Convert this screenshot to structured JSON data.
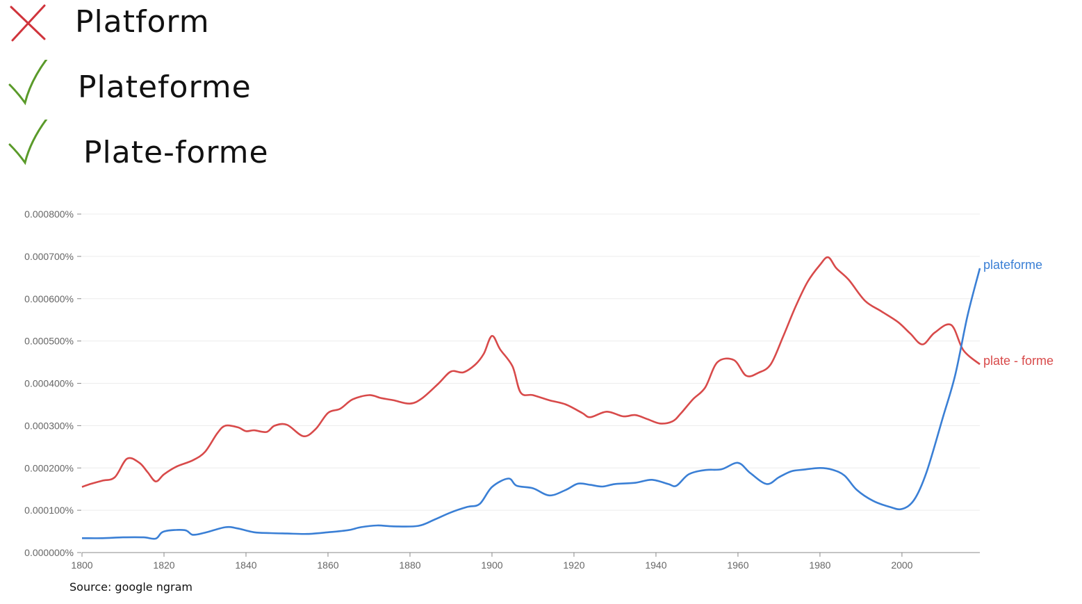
{
  "words": [
    {
      "text": "Platform",
      "status": "wrong",
      "icon": "cross-icon",
      "color": "#d0343c"
    },
    {
      "text": "Plateforme",
      "status": "correct",
      "icon": "check-icon",
      "color": "#5a9a2a"
    },
    {
      "text": "Plate-forme",
      "status": "correct",
      "icon": "check-icon",
      "color": "#5a9a2a"
    }
  ],
  "source": "Source: google ngram",
  "chart_data": {
    "type": "line",
    "title": "",
    "xlabel": "",
    "ylabel": "",
    "xlim": [
      1800,
      2019
    ],
    "ylim": [
      0,
      0.0008
    ],
    "grid": true,
    "x_ticks": [
      1800,
      1820,
      1840,
      1860,
      1880,
      1900,
      1920,
      1940,
      1960,
      1980,
      2000
    ],
    "y_ticks": [
      "0.000000%",
      "0.000100%",
      "0.000200%",
      "0.000300%",
      "0.000400%",
      "0.000500%",
      "0.000600%",
      "0.000700%",
      "0.000800%"
    ],
    "legend": "inline-right",
    "series": [
      {
        "name": "plateforme",
        "color": "#3a7fd5",
        "points": [
          [
            1800,
            3.4e-05
          ],
          [
            1805,
            3.4e-05
          ],
          [
            1810,
            3.6e-05
          ],
          [
            1815,
            3.6e-05
          ],
          [
            1818,
            3.3e-05
          ],
          [
            1820,
            5e-05
          ],
          [
            1825,
            5.3e-05
          ],
          [
            1827,
            4.2e-05
          ],
          [
            1830,
            4.7e-05
          ],
          [
            1835,
            6e-05
          ],
          [
            1838,
            5.7e-05
          ],
          [
            1842,
            4.8e-05
          ],
          [
            1846,
            4.6e-05
          ],
          [
            1850,
            4.5e-05
          ],
          [
            1855,
            4.4e-05
          ],
          [
            1860,
            4.8e-05
          ],
          [
            1865,
            5.3e-05
          ],
          [
            1868,
            6e-05
          ],
          [
            1872,
            6.4e-05
          ],
          [
            1876,
            6.2e-05
          ],
          [
            1882,
            6.3e-05
          ],
          [
            1886,
            7.8e-05
          ],
          [
            1890,
            9.5e-05
          ],
          [
            1894,
            0.000108
          ],
          [
            1897,
            0.000115
          ],
          [
            1900,
            0.000155
          ],
          [
            1904,
            0.000175
          ],
          [
            1906,
            0.000158
          ],
          [
            1910,
            0.000152
          ],
          [
            1914,
            0.000135
          ],
          [
            1918,
            0.000148
          ],
          [
            1921,
            0.000163
          ],
          [
            1924,
            0.00016
          ],
          [
            1927,
            0.000156
          ],
          [
            1930,
            0.000162
          ],
          [
            1935,
            0.000165
          ],
          [
            1939,
            0.000172
          ],
          [
            1943,
            0.000162
          ],
          [
            1945,
            0.000158
          ],
          [
            1948,
            0.000185
          ],
          [
            1952,
            0.000195
          ],
          [
            1956,
            0.000197
          ],
          [
            1960,
            0.000212
          ],
          [
            1963,
            0.000188
          ],
          [
            1967,
            0.000162
          ],
          [
            1970,
            0.000178
          ],
          [
            1973,
            0.000192
          ],
          [
            1976,
            0.000196
          ],
          [
            1980,
            0.0002
          ],
          [
            1983,
            0.000196
          ],
          [
            1986,
            0.000182
          ],
          [
            1989,
            0.000148
          ],
          [
            1993,
            0.000122
          ],
          [
            1997,
            0.000108
          ],
          [
            2000,
            0.000103
          ],
          [
            2003,
            0.000125
          ],
          [
            2006,
            0.00019
          ],
          [
            2010,
            0.00032
          ],
          [
            2013,
            0.00042
          ],
          [
            2016,
            0.00056
          ],
          [
            2019,
            0.000672
          ]
        ]
      },
      {
        "name": "plate - forme",
        "color": "#d84a4a",
        "points": [
          [
            1800,
            0.000155
          ],
          [
            1802,
            0.000162
          ],
          [
            1805,
            0.00017
          ],
          [
            1808,
            0.000178
          ],
          [
            1811,
            0.000222
          ],
          [
            1814,
            0.000212
          ],
          [
            1816,
            0.00019
          ],
          [
            1818,
            0.000168
          ],
          [
            1820,
            0.000185
          ],
          [
            1823,
            0.000203
          ],
          [
            1827,
            0.000218
          ],
          [
            1830,
            0.000238
          ],
          [
            1833,
            0.000282
          ],
          [
            1835,
            0.0003
          ],
          [
            1838,
            0.000296
          ],
          [
            1840,
            0.000287
          ],
          [
            1842,
            0.000289
          ],
          [
            1845,
            0.000285
          ],
          [
            1847,
            0.0003
          ],
          [
            1850,
            0.000302
          ],
          [
            1854,
            0.000275
          ],
          [
            1857,
            0.000292
          ],
          [
            1860,
            0.00033
          ],
          [
            1863,
            0.00034
          ],
          [
            1866,
            0.000362
          ],
          [
            1870,
            0.000372
          ],
          [
            1873,
            0.000365
          ],
          [
            1876,
            0.00036
          ],
          [
            1880,
            0.000352
          ],
          [
            1883,
            0.000365
          ],
          [
            1887,
            0.0004
          ],
          [
            1890,
            0.000428
          ],
          [
            1893,
            0.000426
          ],
          [
            1896,
            0.000445
          ],
          [
            1898,
            0.00047
          ],
          [
            1900,
            0.000512
          ],
          [
            1902,
            0.00048
          ],
          [
            1905,
            0.00044
          ],
          [
            1907,
            0.000378
          ],
          [
            1910,
            0.000372
          ],
          [
            1914,
            0.00036
          ],
          [
            1918,
            0.00035
          ],
          [
            1922,
            0.00033
          ],
          [
            1924,
            0.00032
          ],
          [
            1928,
            0.000333
          ],
          [
            1932,
            0.000322
          ],
          [
            1935,
            0.000325
          ],
          [
            1938,
            0.000315
          ],
          [
            1941,
            0.000305
          ],
          [
            1944,
            0.00031
          ],
          [
            1946,
            0.000328
          ],
          [
            1949,
            0.000362
          ],
          [
            1952,
            0.00039
          ],
          [
            1955,
            0.00045
          ],
          [
            1959,
            0.000455
          ],
          [
            1962,
            0.000418
          ],
          [
            1965,
            0.000425
          ],
          [
            1968,
            0.000445
          ],
          [
            1971,
            0.00051
          ],
          [
            1974,
            0.00058
          ],
          [
            1977,
            0.00064
          ],
          [
            1980,
            0.00068
          ],
          [
            1982,
            0.000698
          ],
          [
            1984,
            0.000672
          ],
          [
            1987,
            0.000645
          ],
          [
            1991,
            0.000595
          ],
          [
            1995,
            0.00057
          ],
          [
            1999,
            0.000545
          ],
          [
            2002,
            0.000518
          ],
          [
            2005,
            0.000492
          ],
          [
            2008,
            0.00052
          ],
          [
            2012,
            0.000538
          ],
          [
            2015,
            0.000478
          ],
          [
            2019,
            0.000445
          ]
        ]
      }
    ]
  }
}
